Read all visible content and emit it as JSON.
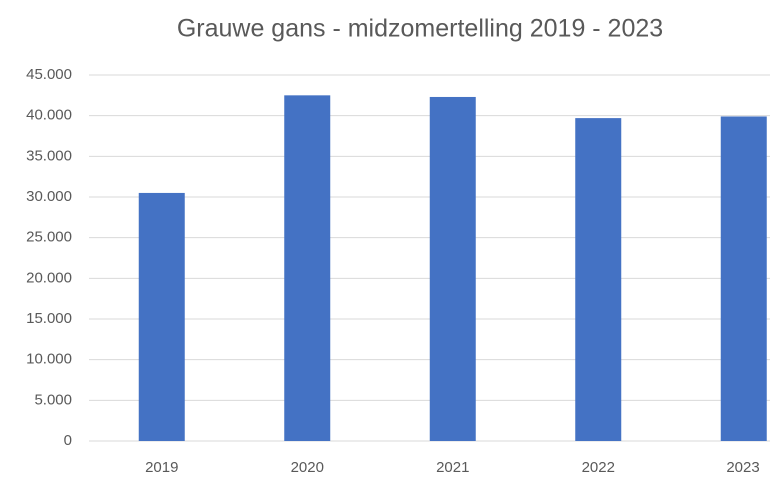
{
  "chart_data": {
    "type": "bar",
    "title": "Grauwe gans - midzomertelling 2019 - 2023",
    "categories": [
      "2019",
      "2020",
      "2021",
      "2022",
      "2023"
    ],
    "values": [
      30500,
      42500,
      42300,
      39700,
      39900
    ],
    "color": "#4472c4",
    "ylim": [
      0,
      45000
    ],
    "yticks": [
      0,
      {
        "value": 5000,
        "label": "5.000"
      },
      {
        "value": 10000,
        "label": "10.000"
      },
      {
        "value": 15000,
        "label": "15.000"
      },
      {
        "value": 20000,
        "label": "20.000"
      },
      {
        "value": 25000,
        "label": "25.000"
      },
      {
        "value": 30000,
        "label": "30.000"
      },
      {
        "value": 35000,
        "label": "35.000"
      },
      {
        "value": 40000,
        "label": "40.000"
      },
      {
        "value": 45000,
        "label": "45.000"
      }
    ],
    "grid": true
  }
}
